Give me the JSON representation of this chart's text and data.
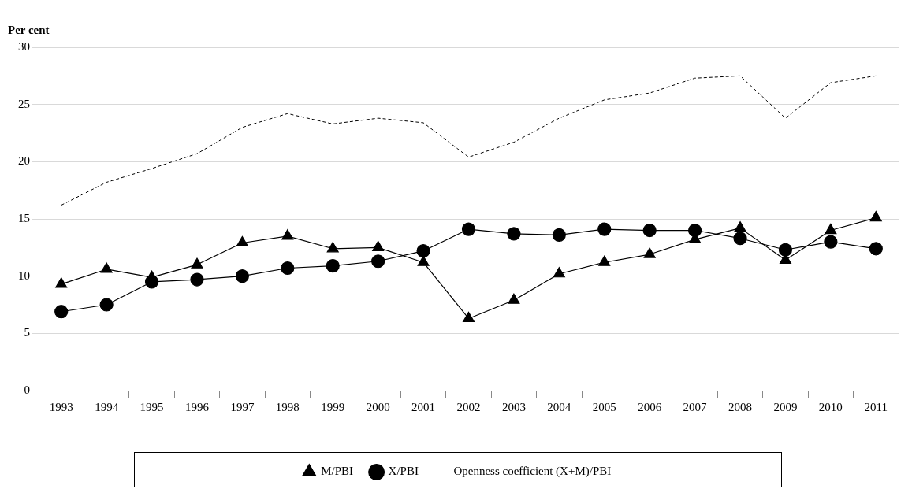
{
  "chart_data": {
    "type": "line",
    "ylabel": "Per cent",
    "categories": [
      "1993",
      "1994",
      "1995",
      "1996",
      "1997",
      "1998",
      "1999",
      "2000",
      "2001",
      "2002",
      "2003",
      "2004",
      "2005",
      "2006",
      "2007",
      "2008",
      "2009",
      "2010",
      "2011"
    ],
    "series": [
      {
        "name": "Openness coefficient (X+M)/PBI",
        "color": "#000000",
        "marker": "none",
        "line_style": "dashed",
        "values": [
          16.2,
          18.2,
          19.4,
          20.7,
          23.0,
          24.2,
          23.3,
          23.8,
          23.4,
          20.4,
          21.7,
          23.8,
          25.4,
          26.0,
          27.3,
          27.5,
          23.8,
          26.9,
          27.5
        ]
      },
      {
        "name": "X/PBI",
        "color": "#000000",
        "marker": "circle",
        "line_style": "solid",
        "values": [
          6.9,
          7.5,
          9.5,
          9.7,
          10.0,
          10.7,
          10.9,
          11.3,
          12.2,
          14.1,
          13.7,
          13.6,
          14.1,
          14.0,
          14.0,
          13.3,
          12.3,
          13.0,
          12.4
        ]
      },
      {
        "name": "M/PBI",
        "color": "#000000",
        "marker": "triangle",
        "line_style": "solid",
        "values": [
          9.3,
          10.6,
          9.9,
          11.0,
          12.9,
          13.5,
          12.4,
          12.5,
          11.2,
          6.3,
          7.9,
          10.2,
          11.2,
          11.9,
          13.2,
          14.2,
          11.4,
          14.0,
          15.1
        ]
      }
    ],
    "ylim": [
      0,
      30
    ],
    "yticks": [
      0,
      5,
      10,
      15,
      20,
      25,
      30
    ],
    "grid": "y",
    "legend": "bottom"
  }
}
